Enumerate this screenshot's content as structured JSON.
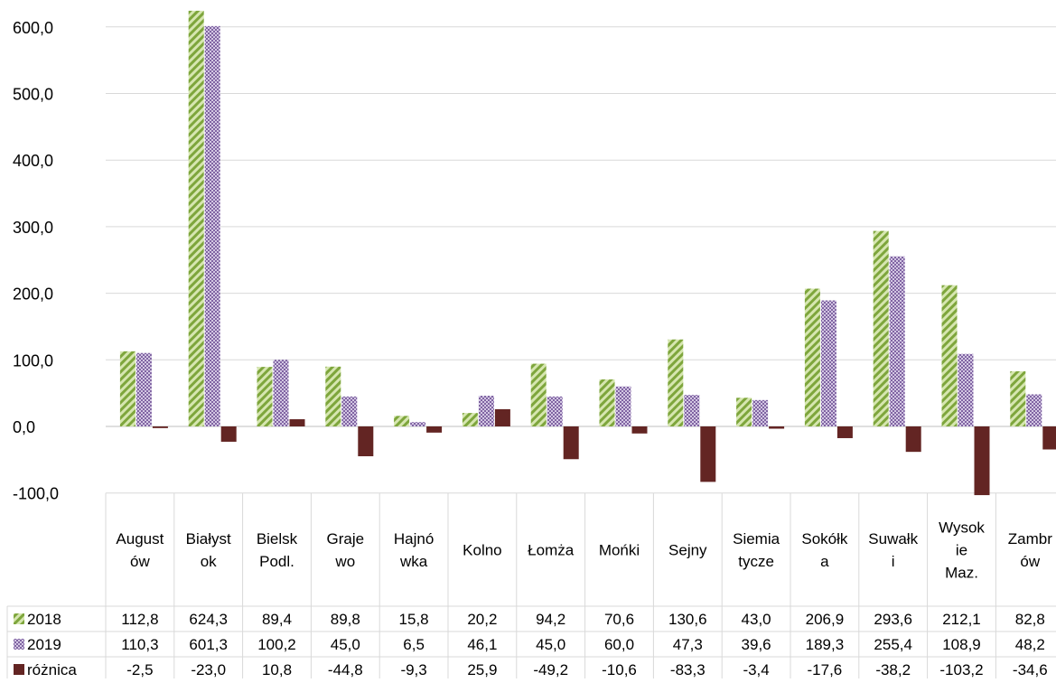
{
  "chart_data": {
    "type": "bar",
    "ylim": [
      -100,
      600
    ],
    "ytick_step": 100,
    "ytick_labels": [
      "-100,0",
      "0,0",
      "100,0",
      "200,0",
      "300,0",
      "400,0",
      "500,0",
      "600,0"
    ],
    "grid": true,
    "legend_placement": "left of data table",
    "categories": [
      [
        "August",
        "ów"
      ],
      [
        "Białyst",
        "ok"
      ],
      [
        "Bielsk",
        "Podl."
      ],
      [
        "Graje",
        "wo"
      ],
      [
        "Hajnó",
        "wka"
      ],
      [
        "Kolno"
      ],
      [
        "Łomża"
      ],
      [
        "Mońki"
      ],
      [
        "Sejny"
      ],
      [
        "Siemia",
        "tycze"
      ],
      [
        "Sokółk",
        "a"
      ],
      [
        "Suwałk",
        "i"
      ],
      [
        "Wysok",
        "ie",
        "Maz."
      ],
      [
        "Zambr",
        "ów"
      ]
    ],
    "series": [
      {
        "name": "2018",
        "color": "#9BBB59",
        "pattern": "diagonal-stripes",
        "values": [
          112.8,
          624.3,
          89.4,
          89.8,
          15.8,
          20.2,
          94.2,
          70.6,
          130.6,
          43.0,
          206.9,
          293.6,
          212.1,
          82.8
        ],
        "labels": [
          "112,8",
          "624,3",
          "89,4",
          "89,8",
          "15,8",
          "20,2",
          "94,2",
          "70,6",
          "130,6",
          "43,0",
          "206,9",
          "293,6",
          "212,1",
          "82,8"
        ]
      },
      {
        "name": "2019",
        "color": "#8064A2",
        "pattern": "checker",
        "values": [
          110.3,
          601.3,
          100.2,
          45.0,
          6.5,
          46.1,
          45.0,
          60.0,
          47.3,
          39.6,
          189.3,
          255.4,
          108.9,
          48.2
        ],
        "labels": [
          "110,3",
          "601,3",
          "100,2",
          "45,0",
          "6,5",
          "46,1",
          "45,0",
          "60,0",
          "47,3",
          "39,6",
          "189,3",
          "255,4",
          "108,9",
          "48,2"
        ]
      },
      {
        "name": "różnica",
        "color": "#632523",
        "pattern": "solid",
        "values": [
          -2.5,
          -23.0,
          10.8,
          -44.8,
          -9.3,
          25.9,
          -49.2,
          -10.6,
          -83.3,
          -3.4,
          -17.6,
          -38.2,
          -103.2,
          -34.6
        ],
        "labels": [
          "-2,5",
          "-23,0",
          "10,8",
          "-44,8",
          "-9,3",
          "25,9",
          "-49,2",
          "-10,6",
          "-83,3",
          "-3,4",
          "-17,6",
          "-38,2",
          "-103,2",
          "-34,6"
        ]
      }
    ]
  }
}
